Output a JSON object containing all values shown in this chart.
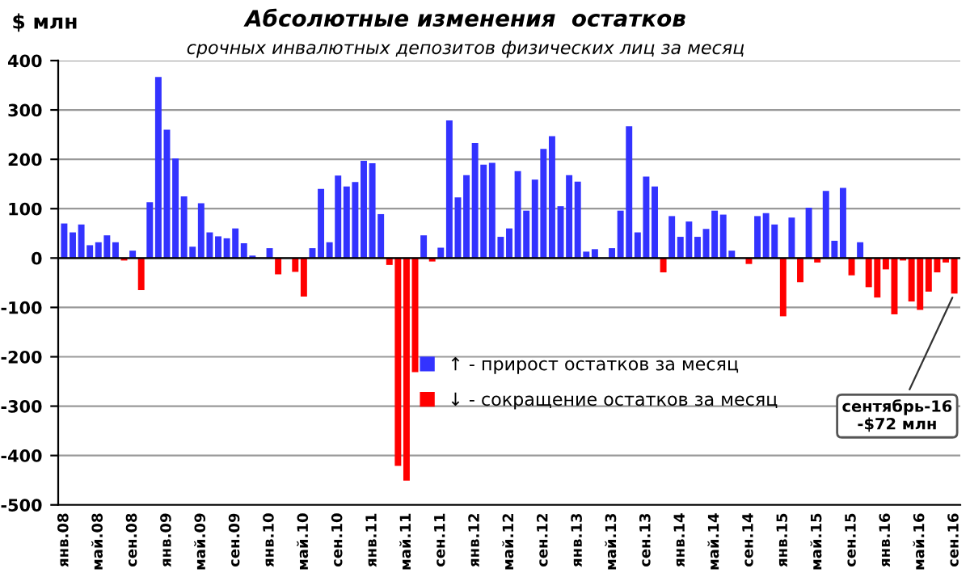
{
  "chart_data": {
    "type": "bar",
    "title": "Абсолютные изменения  остатков",
    "subtitle": "срочных инвалютных депозитов физических лиц за месяц",
    "ylabel": "$ млн",
    "categories": [
      "янв.08",
      null,
      null,
      null,
      "май.08",
      null,
      null,
      null,
      "сен.08",
      null,
      null,
      null,
      "янв.09",
      null,
      null,
      null,
      "май.09",
      null,
      null,
      null,
      "сен.09",
      null,
      null,
      null,
      "янв.10",
      null,
      null,
      null,
      "май.10",
      null,
      null,
      null,
      "сен.10",
      null,
      null,
      null,
      "янв.11",
      null,
      null,
      null,
      "май.11",
      null,
      null,
      null,
      "сен.11",
      null,
      null,
      null,
      "янв.12",
      null,
      null,
      null,
      "май.12",
      null,
      null,
      null,
      "сен.12",
      null,
      null,
      null,
      "янв.13",
      null,
      null,
      null,
      "май.13",
      null,
      null,
      null,
      "сен.13",
      null,
      null,
      null,
      "янв.14",
      null,
      null,
      null,
      "май.14",
      null,
      null,
      null,
      "сен.14",
      null,
      null,
      null,
      "янв.15",
      null,
      null,
      null,
      "май.15",
      null,
      null,
      null,
      "сен.15",
      null,
      null,
      null,
      "янв.16",
      null,
      null,
      null,
      "май.16",
      null,
      null,
      null,
      "сен.16"
    ],
    "stacked": true,
    "series": [
      {
        "name": "↑ - прирост остатков за месяц",
        "color": "#3333ff",
        "values": [
          70,
          52,
          68,
          26,
          32,
          46,
          32,
          null,
          15,
          null,
          113,
          367,
          260,
          202,
          125,
          23,
          111,
          52,
          44,
          40,
          60,
          30,
          5,
          0,
          20,
          null,
          0,
          null,
          null,
          20,
          140,
          32,
          167,
          145,
          154,
          197,
          192,
          89,
          null,
          null,
          null,
          null,
          46,
          null,
          21,
          279,
          123,
          168,
          233,
          189,
          193,
          43,
          60,
          176,
          96,
          159,
          221,
          247,
          105,
          168,
          155,
          13,
          18,
          0,
          20,
          96,
          267,
          52,
          165,
          145,
          null,
          85,
          43,
          74,
          43,
          59,
          96,
          88,
          15,
          0,
          null,
          85,
          91,
          68,
          null,
          82,
          null,
          102,
          null,
          136,
          35,
          142,
          null,
          32,
          null,
          null,
          null,
          null,
          null,
          null,
          null,
          null,
          null,
          null,
          null
        ]
      },
      {
        "name": "↓ - сокращение остатков за месяц",
        "color": "#ff0000",
        "values": [
          null,
          null,
          null,
          null,
          null,
          null,
          null,
          -5,
          null,
          -65,
          null,
          null,
          null,
          null,
          null,
          null,
          null,
          null,
          null,
          null,
          null,
          null,
          null,
          null,
          null,
          -33,
          null,
          -28,
          -78,
          null,
          null,
          null,
          null,
          null,
          null,
          null,
          null,
          null,
          -14,
          -421,
          -451,
          -231,
          null,
          -7,
          null,
          null,
          null,
          null,
          null,
          null,
          null,
          null,
          null,
          null,
          null,
          null,
          null,
          null,
          null,
          null,
          null,
          null,
          null,
          null,
          null,
          null,
          null,
          null,
          null,
          null,
          -29,
          null,
          null,
          null,
          null,
          null,
          null,
          null,
          null,
          null,
          -12,
          null,
          null,
          null,
          -118,
          null,
          -49,
          null,
          -9,
          null,
          null,
          null,
          -35,
          null,
          -59,
          -80,
          -23,
          -114,
          -5,
          -88,
          -105,
          -68,
          -29,
          -9,
          -72
        ]
      }
    ],
    "ylim": [
      -500,
      400
    ],
    "yticks": [
      -500,
      -400,
      -300,
      -200,
      -100,
      0,
      100,
      200,
      300,
      400
    ],
    "grid": "y",
    "legend": "bottom",
    "annotations": [
      {
        "text": "сентябрь-16\n-$72 млн",
        "x": "сен.16",
        "y": -72
      }
    ]
  }
}
